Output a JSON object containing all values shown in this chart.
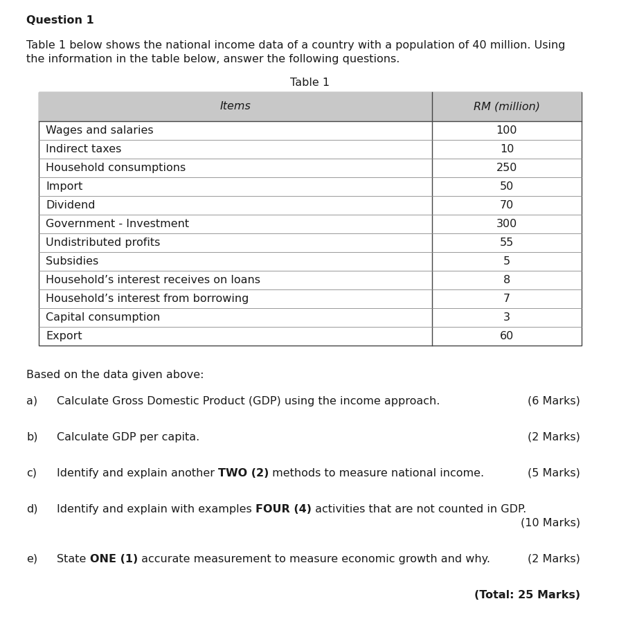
{
  "title_question": "Question 1",
  "intro_line1": "Table 1 below shows the national income data of a country with a population of 40 million. Using",
  "intro_line2": "the information in the table below, answer the following questions.",
  "table_title": "Table 1",
  "col1_header": "Items",
  "col2_header": "RM (million)",
  "rows": [
    [
      "Wages and salaries",
      "100"
    ],
    [
      "Indirect taxes",
      "10"
    ],
    [
      "Household consumptions",
      "250"
    ],
    [
      "Import",
      "50"
    ],
    [
      "Dividend",
      "70"
    ],
    [
      "Government - Investment",
      "300"
    ],
    [
      "Undistributed profits",
      "55"
    ],
    [
      "Subsidies",
      "5"
    ],
    [
      "Household’s interest receives on loans",
      "8"
    ],
    [
      "Household’s interest from borrowing",
      "7"
    ],
    [
      "Capital consumption",
      "3"
    ],
    [
      "Export",
      "60"
    ]
  ],
  "background_color": "#ffffff",
  "header_bg_color": "#c8c8c8",
  "table_border_color": "#444444",
  "table_inner_color": "#888888",
  "text_color": "#1a1a1a",
  "font_size": 11.5,
  "dpi": 100,
  "fig_w": 8.95,
  "fig_h": 8.91
}
